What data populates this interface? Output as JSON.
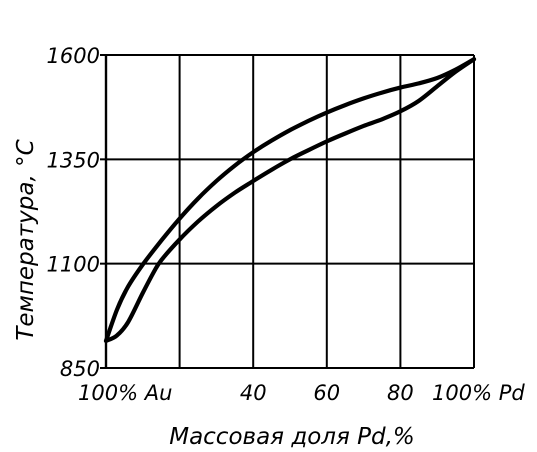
{
  "chart_data": {
    "type": "line",
    "xlabel": "Массовая доля Pd,%",
    "ylabel": "Температура, °С",
    "xlim": [
      0,
      100
    ],
    "ylim": [
      850,
      1600
    ],
    "x_ticks": [
      {
        "value": 0,
        "label": "100% Au"
      },
      {
        "value": 40,
        "label": "40"
      },
      {
        "value": 60,
        "label": "60"
      },
      {
        "value": 80,
        "label": "80"
      },
      {
        "value": 100,
        "label": "100% Pd"
      }
    ],
    "y_ticks": [
      {
        "value": 850,
        "label": "850"
      },
      {
        "value": 1100,
        "label": "1100"
      },
      {
        "value": 1350,
        "label": "1350"
      },
      {
        "value": 1600,
        "label": "1600"
      }
    ],
    "grid_x": [
      0,
      20,
      40,
      60,
      80,
      100
    ],
    "grid_y": [
      850,
      1100,
      1350,
      1600
    ],
    "grid": true,
    "series": [
      {
        "x": [
          0,
          3,
          6,
          10,
          15,
          20,
          25,
          30,
          35,
          40,
          45,
          50,
          55,
          60,
          65,
          70,
          75,
          80,
          85,
          90,
          95,
          100
        ],
        "y": [
          915,
          990,
          1045,
          1098,
          1155,
          1208,
          1256,
          1298,
          1335,
          1367,
          1395,
          1420,
          1442,
          1462,
          1480,
          1496,
          1510,
          1522,
          1532,
          1545,
          1565,
          1590
        ]
      },
      {
        "x": [
          0,
          3,
          6,
          10,
          13,
          15,
          20,
          25,
          30,
          35,
          40,
          45,
          50,
          55,
          60,
          65,
          70,
          75,
          80,
          85,
          90,
          95,
          100
        ],
        "y": [
          915,
          928,
          960,
          1030,
          1080,
          1108,
          1158,
          1201,
          1238,
          1270,
          1298,
          1325,
          1350,
          1372,
          1393,
          1412,
          1430,
          1446,
          1465,
          1490,
          1525,
          1560,
          1590
        ]
      }
    ],
    "colors": {
      "line": "#000000",
      "grid": "#000000",
      "background": "#ffffff"
    }
  }
}
